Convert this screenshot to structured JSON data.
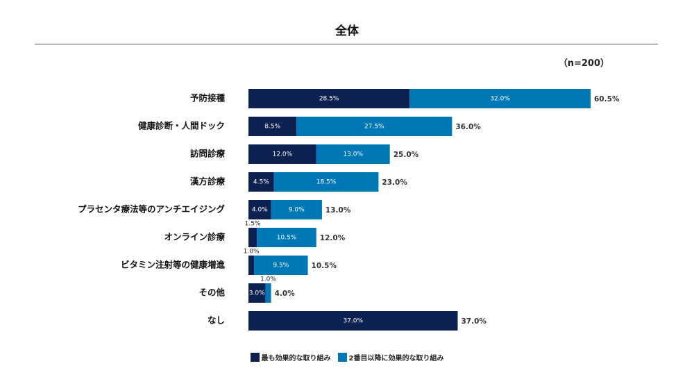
{
  "chart_data": {
    "type": "bar",
    "orientation": "horizontal",
    "stacked": true,
    "title": "全体",
    "sample_note": "（n=200）",
    "categories": [
      "予防接種",
      "健康診断・人間ドック",
      "訪問診療",
      "漢方診療",
      "プラセンタ療法等のアンチエイジング",
      "オンライン診療",
      "ビタミン注射等の健康増進",
      "その他",
      "なし"
    ],
    "series": [
      {
        "name": "最も効果的な取り組み",
        "color": "#0c2150",
        "values": [
          28.5,
          8.5,
          12.0,
          4.5,
          4.0,
          1.5,
          1.0,
          3.0,
          37.0
        ],
        "labels": [
          "28.5%",
          "8.5%",
          "12.0%",
          "4.5%",
          "4.0%",
          "1.5%",
          "1.0%",
          "3.0%",
          "37.0%"
        ]
      },
      {
        "name": "2番目以降に効果的な取り組み",
        "color": "#0077b6",
        "values": [
          32.0,
          27.5,
          13.0,
          18.5,
          9.0,
          10.5,
          9.5,
          1.0,
          null
        ],
        "labels": [
          "32.0%",
          "27.5%",
          "13.0%",
          "18.5%",
          "9.0%",
          "10.5%",
          "9.5%",
          "1.0%",
          ""
        ]
      }
    ],
    "totals": [
      60.5,
      36.0,
      25.0,
      23.0,
      13.0,
      12.0,
      10.5,
      4.0,
      37.0
    ],
    "total_labels": [
      "60.5%",
      "36.0%",
      "25.0%",
      "23.0%",
      "13.0%",
      "12.0%",
      "10.5%",
      "4.0%",
      "37.0%"
    ],
    "xlim": [
      0,
      60.5
    ],
    "grid": false,
    "legend": "bottom"
  }
}
